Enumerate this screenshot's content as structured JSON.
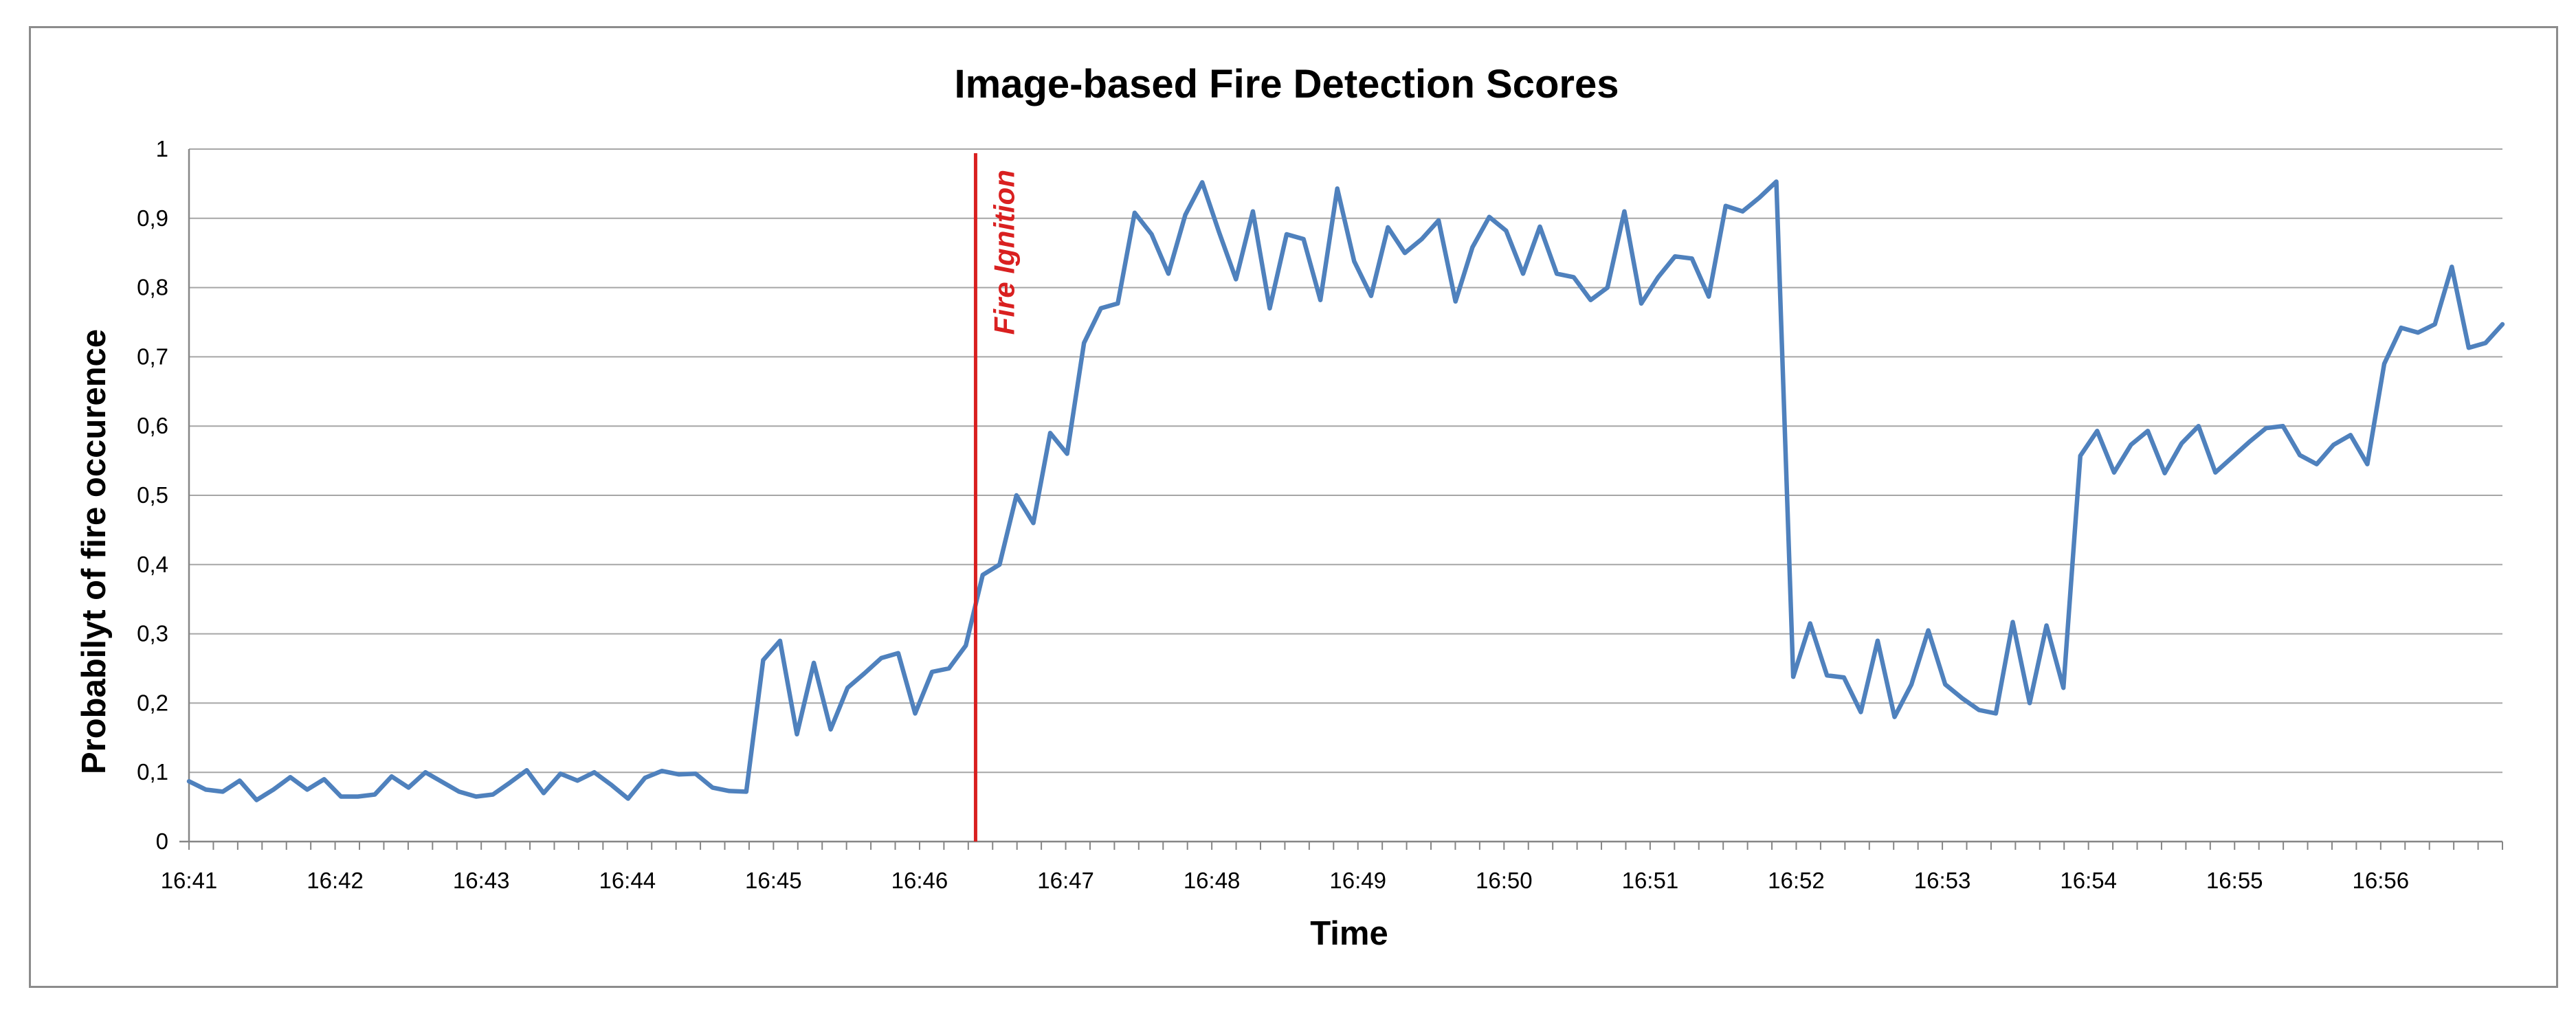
{
  "chart_data": {
    "type": "line",
    "title": "Image-based Fire Detection Scores",
    "xlabel": "Time",
    "ylabel": "Probabilyt of fire occurence",
    "x_ticks": [
      "16:41",
      "16:42",
      "16:43",
      "16:44",
      "16:45",
      "16:46",
      "16:47",
      "16:48",
      "16:49",
      "16:50",
      "16:51",
      "16:52",
      "16:53",
      "16:54",
      "16:55",
      "16:56"
    ],
    "y_ticks": [
      "0",
      "0,1",
      "0,2",
      "0,3",
      "0,4",
      "0,5",
      "0,6",
      "0,7",
      "0,8",
      "0,9",
      "1"
    ],
    "ylim": [
      0,
      1
    ],
    "xlim": [
      "16:41",
      "16:56:50"
    ],
    "grid": "horizontal",
    "legend": "none",
    "series": [
      {
        "color": "#4f81bd",
        "values": [
          0.087,
          0.075,
          0.072,
          0.088,
          0.06,
          0.075,
          0.093,
          0.075,
          0.09,
          0.065,
          0.065,
          0.068,
          0.094,
          0.078,
          0.1,
          0.086,
          0.072,
          0.065,
          0.068,
          0.085,
          0.103,
          0.07,
          0.098,
          0.088,
          0.1,
          0.082,
          0.062,
          0.092,
          0.102,
          0.097,
          0.098,
          0.078,
          0.073,
          0.072,
          0.262,
          0.29,
          0.155,
          0.258,
          0.162,
          0.222,
          0.243,
          0.265,
          0.272,
          0.185,
          0.245,
          0.25,
          0.283,
          0.385,
          0.4,
          0.5,
          0.46,
          0.59,
          0.56,
          0.72,
          0.77,
          0.777,
          0.908,
          0.877,
          0.82,
          0.905,
          0.952,
          0.88,
          0.812,
          0.91,
          0.77,
          0.877,
          0.87,
          0.782,
          0.943,
          0.838,
          0.788,
          0.887,
          0.85,
          0.87,
          0.897,
          0.78,
          0.858,
          0.902,
          0.882,
          0.82,
          0.888,
          0.82,
          0.815,
          0.782,
          0.8,
          0.91,
          0.777,
          0.815,
          0.845,
          0.842,
          0.787,
          0.918,
          0.91,
          0.93,
          0.953,
          0.238,
          0.315,
          0.24,
          0.237,
          0.187,
          0.29,
          0.18,
          0.227,
          0.305,
          0.227,
          0.207,
          0.19,
          0.185,
          0.317,
          0.2,
          0.312,
          0.222,
          0.557,
          0.593,
          0.533,
          0.573,
          0.593,
          0.532,
          0.575,
          0.6,
          0.533,
          0.555,
          0.577,
          0.597,
          0.6,
          0.558,
          0.545,
          0.573,
          0.587,
          0.545,
          0.69,
          0.742,
          0.735,
          0.747,
          0.83,
          0.713,
          0.72,
          0.747
        ]
      }
    ],
    "annotations": [
      {
        "text": "Fire Ignition",
        "x": "16:46:23",
        "color": "#d92020"
      }
    ]
  }
}
